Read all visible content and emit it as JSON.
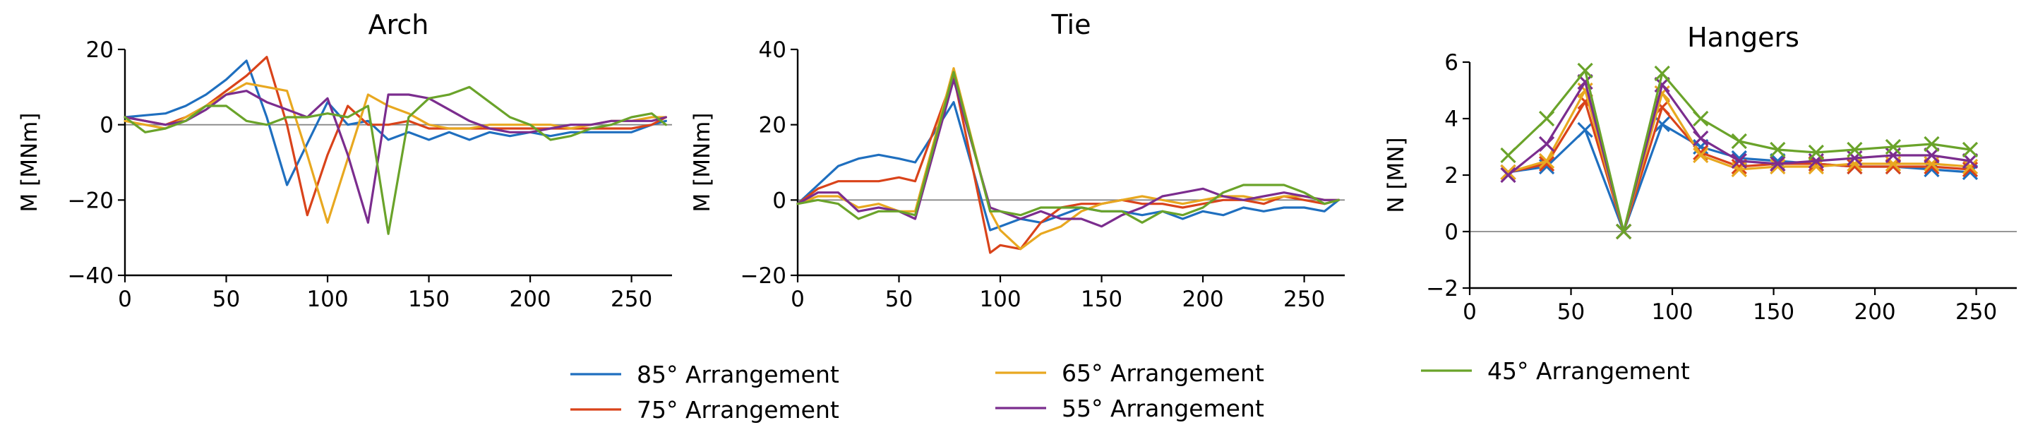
{
  "colors": {
    "85": "#1f6fbf",
    "75": "#d9431a",
    "65": "#e8a820",
    "55": "#7b2d8e",
    "45": "#6aa32a"
  },
  "legend": {
    "placement": "bottom-center",
    "entries": [
      {
        "key": "85",
        "label": "85° Arrangement"
      },
      {
        "key": "75",
        "label": "75° Arrangement"
      },
      {
        "key": "65",
        "label": "65° Arrangement"
      },
      {
        "key": "55",
        "label": "55° Arrangement"
      },
      {
        "key": "45",
        "label": "45° Arrangement"
      }
    ]
  },
  "chart_data": [
    {
      "type": "line",
      "title": "Arch",
      "ylabel": "M [MNm]",
      "xlim": [
        0,
        270
      ],
      "ylim": [
        -40,
        20
      ],
      "xticks": [
        0,
        50,
        100,
        150,
        200,
        250
      ],
      "yticks": [
        -40,
        -20,
        0,
        20
      ],
      "zero_line": true,
      "series": [
        {
          "key": "85",
          "x": [
            0,
            10,
            20,
            30,
            40,
            50,
            60,
            70,
            80,
            90,
            100,
            110,
            120,
            130,
            140,
            150,
            160,
            170,
            180,
            190,
            200,
            210,
            220,
            230,
            240,
            250,
            260,
            267
          ],
          "y": [
            2,
            2.5,
            3,
            5,
            8,
            12,
            17,
            2,
            -16,
            -5,
            6,
            0,
            1,
            -4,
            -2,
            -4,
            -2,
            -4,
            -2,
            -3,
            -2,
            -3,
            -2,
            -2,
            -2,
            -2,
            0,
            1
          ]
        },
        {
          "key": "75",
          "x": [
            0,
            10,
            20,
            30,
            40,
            50,
            60,
            70,
            80,
            90,
            100,
            110,
            120,
            130,
            140,
            150,
            160,
            170,
            180,
            190,
            200,
            210,
            220,
            230,
            240,
            250,
            260,
            267
          ],
          "y": [
            2,
            1,
            0,
            2,
            5,
            9,
            13,
            18,
            0,
            -24,
            -8,
            5,
            0,
            0,
            1,
            -1,
            -1,
            -1,
            -1,
            -1,
            -1,
            -1,
            -1,
            -1,
            -1,
            -1,
            0,
            2
          ]
        },
        {
          "key": "65",
          "x": [
            0,
            10,
            20,
            30,
            40,
            50,
            60,
            70,
            80,
            90,
            100,
            110,
            120,
            130,
            140,
            150,
            160,
            170,
            180,
            190,
            200,
            210,
            220,
            230,
            240,
            250,
            260,
            267
          ],
          "y": [
            1,
            0,
            -1,
            2,
            5,
            8,
            11,
            10,
            9,
            -8,
            -26,
            -9,
            8,
            5,
            3,
            0,
            -1,
            -1,
            0,
            0,
            0,
            0,
            -1,
            0,
            1,
            1,
            2,
            2
          ]
        },
        {
          "key": "55",
          "x": [
            0,
            10,
            20,
            30,
            40,
            50,
            60,
            70,
            80,
            90,
            100,
            110,
            120,
            130,
            140,
            150,
            160,
            170,
            180,
            190,
            200,
            210,
            220,
            230,
            240,
            250,
            260,
            267
          ],
          "y": [
            2,
            1,
            0,
            1,
            4,
            8,
            9,
            6,
            4,
            2,
            7,
            -8,
            -26,
            8,
            8,
            7,
            4,
            1,
            -1,
            -2,
            -2,
            -1,
            0,
            0,
            1,
            1,
            1,
            2
          ]
        },
        {
          "key": "45",
          "x": [
            0,
            10,
            20,
            30,
            40,
            50,
            60,
            70,
            80,
            90,
            100,
            110,
            120,
            130,
            140,
            150,
            160,
            170,
            180,
            190,
            200,
            210,
            220,
            230,
            240,
            250,
            260,
            267
          ],
          "y": [
            2,
            -2,
            -1,
            1,
            5,
            5,
            1,
            0,
            2,
            2,
            3,
            2,
            5,
            -29,
            2,
            7,
            8,
            10,
            6,
            2,
            0,
            -4,
            -3,
            -1,
            0,
            2,
            3,
            0
          ]
        }
      ]
    },
    {
      "type": "line",
      "title": "Tie",
      "ylabel": "M [MNm]",
      "xlim": [
        0,
        270
      ],
      "ylim": [
        -20,
        40
      ],
      "xticks": [
        0,
        50,
        100,
        150,
        200,
        250
      ],
      "yticks": [
        -20,
        0,
        20,
        40
      ],
      "zero_line": true,
      "series": [
        {
          "key": "85",
          "x": [
            0,
            10,
            20,
            30,
            40,
            50,
            58,
            77,
            95,
            100,
            110,
            120,
            130,
            140,
            150,
            160,
            170,
            180,
            190,
            200,
            210,
            220,
            230,
            240,
            250,
            260,
            267
          ],
          "y": [
            -1,
            4,
            9,
            11,
            12,
            11,
            10,
            26,
            -8,
            -7,
            -5,
            -6,
            -4,
            -2,
            -3,
            -3,
            -4,
            -3,
            -5,
            -3,
            -4,
            -2,
            -3,
            -2,
            -2,
            -3,
            0
          ]
        },
        {
          "key": "75",
          "x": [
            0,
            10,
            20,
            30,
            40,
            50,
            58,
            77,
            95,
            100,
            110,
            120,
            130,
            140,
            150,
            160,
            170,
            180,
            190,
            200,
            210,
            220,
            230,
            240,
            250,
            260,
            267
          ],
          "y": [
            -1,
            3,
            5,
            5,
            5,
            6,
            5,
            33,
            -14,
            -12,
            -13,
            -6,
            -2,
            -1,
            -1,
            0,
            -1,
            -1,
            -2,
            -1,
            0,
            0,
            -1,
            1,
            0,
            -1,
            0
          ]
        },
        {
          "key": "65",
          "x": [
            0,
            10,
            20,
            30,
            40,
            50,
            58,
            77,
            95,
            100,
            110,
            120,
            130,
            140,
            150,
            160,
            170,
            180,
            190,
            200,
            210,
            220,
            230,
            240,
            250,
            260,
            267
          ],
          "y": [
            -1,
            1,
            1,
            -2,
            -1,
            -3,
            -3,
            35,
            -3,
            -8,
            -13,
            -9,
            -7,
            -3,
            -1,
            0,
            1,
            0,
            -1,
            0,
            1,
            1,
            0,
            1,
            1,
            0,
            0
          ]
        },
        {
          "key": "55",
          "x": [
            0,
            10,
            20,
            30,
            40,
            50,
            58,
            77,
            95,
            100,
            110,
            120,
            130,
            140,
            150,
            160,
            170,
            180,
            190,
            200,
            210,
            220,
            230,
            240,
            250,
            260,
            267
          ],
          "y": [
            -1,
            2,
            2,
            -3,
            -2,
            -3,
            -5,
            32,
            -2,
            -3,
            -5,
            -3,
            -5,
            -5,
            -7,
            -4,
            -2,
            1,
            2,
            3,
            1,
            0,
            1,
            2,
            1,
            0,
            0
          ]
        },
        {
          "key": "45",
          "x": [
            0,
            10,
            20,
            30,
            40,
            50,
            58,
            77,
            95,
            100,
            110,
            120,
            130,
            140,
            150,
            160,
            170,
            180,
            190,
            200,
            210,
            220,
            230,
            240,
            250,
            260,
            267
          ],
          "y": [
            -1,
            0,
            -1,
            -5,
            -3,
            -3,
            -4,
            34,
            -3,
            -3,
            -4,
            -2,
            -2,
            -2,
            -3,
            -3,
            -6,
            -3,
            -4,
            -2,
            2,
            4,
            4,
            4,
            2,
            -1,
            0
          ]
        }
      ]
    },
    {
      "type": "line",
      "title": "Hangers",
      "ylabel": "N [MN]",
      "xlim": [
        0,
        270
      ],
      "ylim": [
        -2,
        6
      ],
      "xticks": [
        0,
        50,
        100,
        150,
        200,
        250
      ],
      "yticks": [
        -2,
        0,
        2,
        4,
        6
      ],
      "zero_line": true,
      "marker": "x",
      "series": [
        {
          "key": "85",
          "x": [
            19,
            38,
            57,
            76,
            95,
            114,
            133,
            152,
            171,
            190,
            209,
            228,
            247
          ],
          "y": [
            2.1,
            2.3,
            3.6,
            0,
            3.8,
            3.0,
            2.6,
            2.5,
            2.4,
            2.3,
            2.3,
            2.2,
            2.1
          ]
        },
        {
          "key": "75",
          "x": [
            19,
            38,
            57,
            76,
            95,
            114,
            133,
            152,
            171,
            190,
            209,
            228,
            247
          ],
          "y": [
            2.1,
            2.4,
            4.6,
            0,
            4.4,
            2.8,
            2.3,
            2.4,
            2.4,
            2.3,
            2.3,
            2.3,
            2.2
          ]
        },
        {
          "key": "65",
          "x": [
            19,
            38,
            57,
            76,
            95,
            114,
            133,
            152,
            171,
            190,
            209,
            228,
            247
          ],
          "y": [
            2.1,
            2.5,
            5.0,
            0,
            4.9,
            2.7,
            2.2,
            2.3,
            2.3,
            2.4,
            2.4,
            2.4,
            2.3
          ]
        },
        {
          "key": "55",
          "x": [
            19,
            38,
            57,
            76,
            95,
            114,
            133,
            152,
            171,
            190,
            209,
            228,
            247
          ],
          "y": [
            2.0,
            3.1,
            5.3,
            0,
            5.2,
            3.3,
            2.5,
            2.4,
            2.5,
            2.6,
            2.7,
            2.7,
            2.5
          ]
        },
        {
          "key": "45",
          "x": [
            19,
            38,
            57,
            76,
            95,
            114,
            133,
            152,
            171,
            190,
            209,
            228,
            247
          ],
          "y": [
            2.7,
            4.0,
            5.7,
            0,
            5.6,
            4.0,
            3.2,
            2.9,
            2.8,
            2.9,
            3.0,
            3.1,
            2.9
          ]
        }
      ]
    }
  ]
}
